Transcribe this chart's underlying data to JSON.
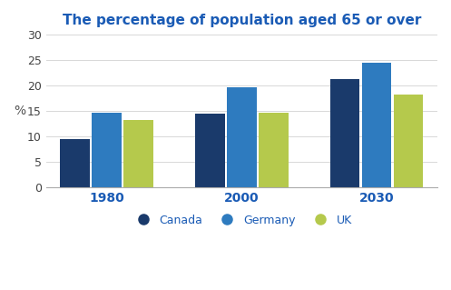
{
  "title": "The percentage of population aged 65 or over",
  "years": [
    "1980",
    "2000",
    "2030"
  ],
  "series": {
    "Canada": [
      9.5,
      14.5,
      21.3
    ],
    "Germany": [
      14.7,
      19.7,
      24.5
    ],
    "UK": [
      13.2,
      14.6,
      18.3
    ]
  },
  "colors": {
    "Canada": "#1a3a6b",
    "Germany": "#2e7bbf",
    "UK": "#b5c94c"
  },
  "ylabel": "%",
  "ylim": [
    0,
    30
  ],
  "yticks": [
    0,
    5,
    10,
    15,
    20,
    25,
    30
  ],
  "bar_width": 0.22,
  "title_color": "#1a5bb5",
  "title_fontsize": 11,
  "tick_label_color": "#1a5bb5",
  "xlabel_fontsize": 10,
  "ylabel_fontsize": 10
}
